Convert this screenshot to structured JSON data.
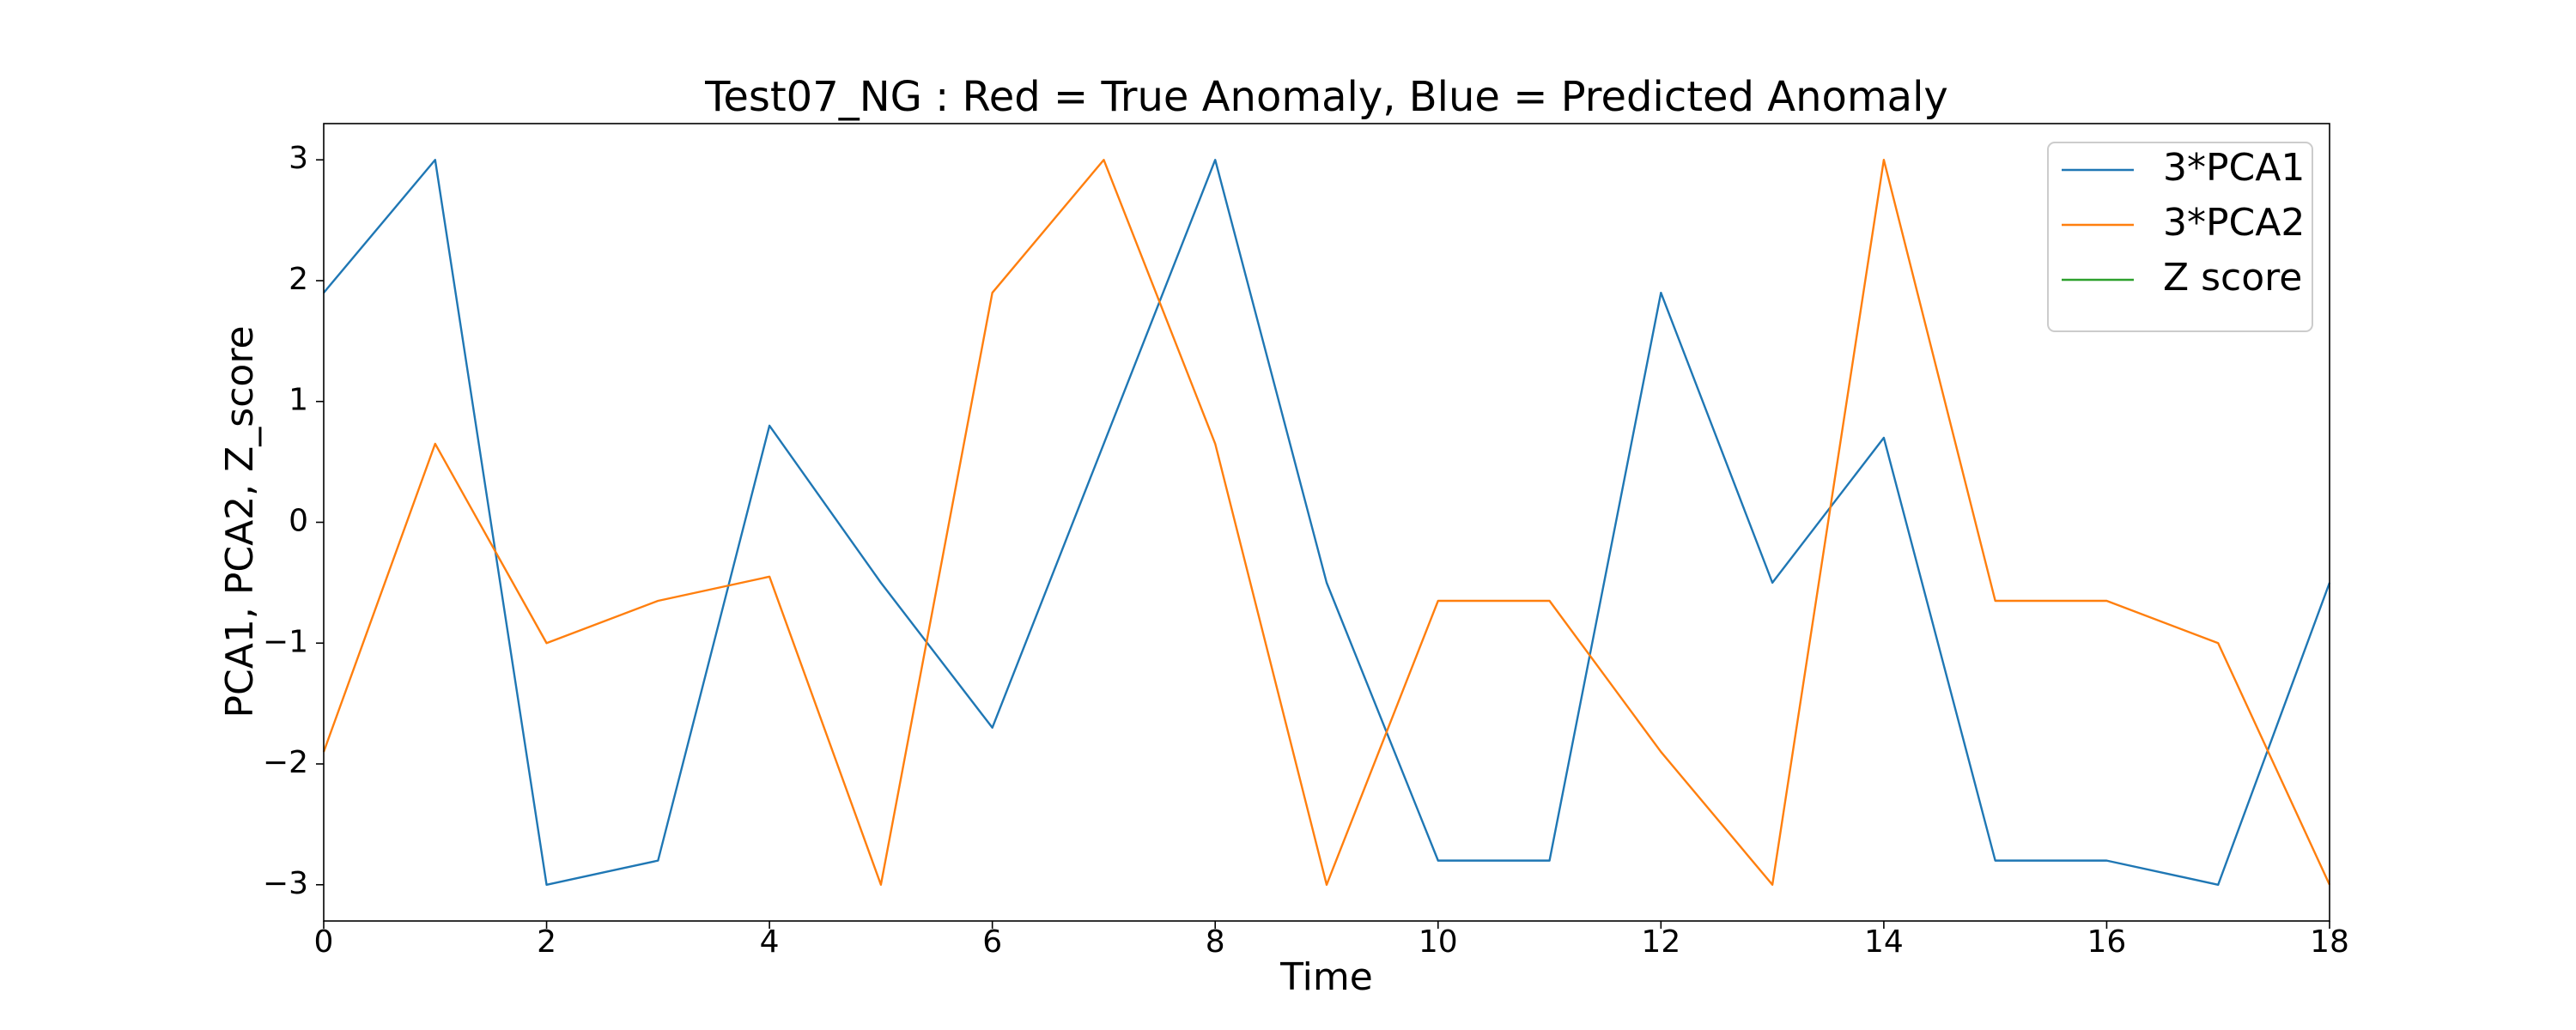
{
  "chart_data": {
    "type": "line",
    "title": "Test07_NG : Red = True Anomaly, Blue = Predicted Anomaly",
    "x_label": "Time",
    "y_label": "PCA1, PCA2, Z_score",
    "x": [
      0,
      1,
      2,
      3,
      4,
      5,
      6,
      7,
      8,
      9,
      10,
      11,
      12,
      13,
      14,
      15,
      16,
      17,
      18
    ],
    "series": [
      {
        "name": "3*PCA1",
        "color": "#1f77b4",
        "values": [
          1.9,
          3,
          -3,
          -2.8,
          0.8,
          -0.5,
          -1.7,
          0.65,
          3,
          -0.5,
          -2.8,
          -2.8,
          1.9,
          -0.5,
          0.7,
          -2.8,
          -2.8,
          -3,
          -0.5
        ]
      },
      {
        "name": "3*PCA2",
        "color": "#ff7f0e",
        "values": [
          -1.9,
          0.65,
          -1.0,
          -0.65,
          -0.45,
          -3,
          1.9,
          3,
          0.65,
          -3,
          -0.65,
          -0.65,
          -1.9,
          -3,
          3,
          -0.65,
          -0.65,
          -1.0,
          -3
        ]
      },
      {
        "name": "Z score",
        "color": "#2ca02c",
        "values": [
          null,
          null,
          null,
          null,
          null,
          null,
          null,
          null,
          null,
          null,
          null,
          null,
          null,
          null,
          null,
          null,
          null,
          null,
          null
        ]
      }
    ],
    "xlim": [
      0,
      18
    ],
    "xticks": [
      0,
      2,
      4,
      6,
      8,
      10,
      12,
      14,
      16,
      18
    ],
    "ylim": [
      -3.3,
      3.3
    ],
    "yticks": [
      {
        "value": -3,
        "label": "−3"
      },
      {
        "value": -2,
        "label": "−2"
      },
      {
        "value": -1,
        "label": "−1"
      },
      0,
      1,
      2,
      3
    ],
    "legend": "upper right",
    "grid": false
  }
}
